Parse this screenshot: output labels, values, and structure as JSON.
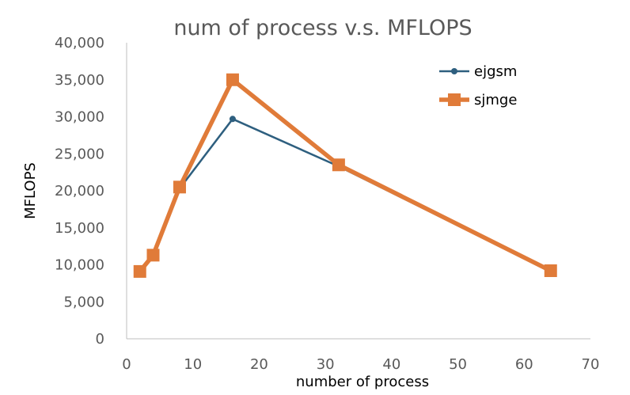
{
  "chart_data": {
    "type": "line",
    "title": "num of process v.s. MFLOPS",
    "xlabel": "number of process",
    "ylabel": "MFLOPS",
    "xlim": [
      0,
      70
    ],
    "ylim": [
      0,
      40000
    ],
    "xticks": [
      0,
      10,
      20,
      30,
      40,
      50,
      60,
      70
    ],
    "yticks": [
      0,
      5000,
      10000,
      15000,
      20000,
      25000,
      30000,
      35000,
      40000
    ],
    "ytick_labels": [
      "0",
      "5,000",
      "10,000",
      "15,000",
      "20,000",
      "25,000",
      "30,000",
      "35,000",
      "40,000"
    ],
    "grid": false,
    "legend_position": "top-right",
    "series": [
      {
        "name": "ejgsm",
        "color": "#2e5f7f",
        "marker": "circle",
        "points": [
          [
            2,
            9100
          ],
          [
            4,
            11300
          ],
          [
            8,
            20300
          ],
          [
            16,
            29700
          ],
          [
            32,
            23300
          ],
          [
            64,
            9100
          ]
        ]
      },
      {
        "name": "sjmge",
        "color": "#e07b39",
        "marker": "square",
        "points": [
          [
            2,
            9100
          ],
          [
            4,
            11300
          ],
          [
            8,
            20500
          ],
          [
            16,
            35000
          ],
          [
            32,
            23500
          ],
          [
            64,
            9200
          ]
        ]
      }
    ]
  }
}
